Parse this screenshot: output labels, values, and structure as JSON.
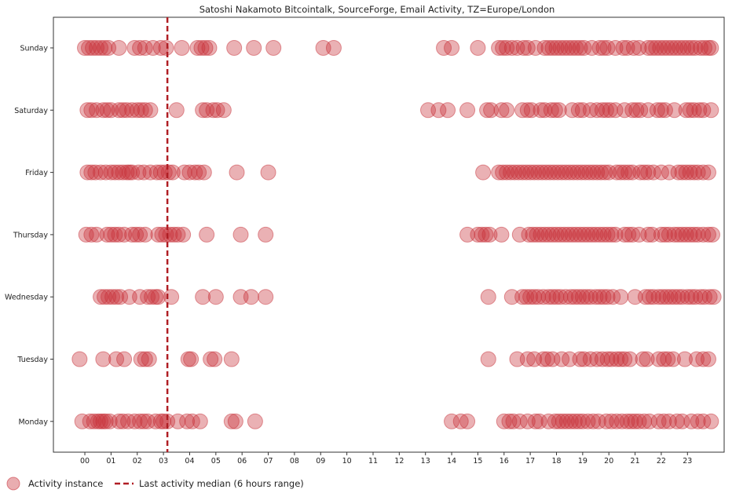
{
  "chart_data": {
    "type": "scatter",
    "title": "Satoshi Nakamoto Bitcointalk, SourceForge, Email Activity, TZ=Europe/London",
    "xlabel": "",
    "ylabel": "",
    "x_ticks": [
      "00",
      "01",
      "02",
      "03",
      "04",
      "05",
      "06",
      "07",
      "08",
      "09",
      "10",
      "11",
      "12",
      "13",
      "14",
      "15",
      "16",
      "17",
      "18",
      "19",
      "20",
      "21",
      "22",
      "23"
    ],
    "xlim": [
      -1.2,
      24.4
    ],
    "categories": [
      "Sunday",
      "Saturday",
      "Friday",
      "Thursday",
      "Wednesday",
      "Tuesday",
      "Monday"
    ],
    "marker_color": "#c8323a",
    "line_color": "#b01e24",
    "legend_position": "bottom-left",
    "grid": false,
    "median_line": {
      "x": 3.15,
      "label": "Last activity median (6 hours range)"
    },
    "series": [
      {
        "name": "Activity instance",
        "points": [
          {
            "day": "Sunday",
            "hours": [
              0.0,
              0.15,
              0.3,
              0.45,
              0.6,
              0.75,
              0.9,
              1.3,
              1.9,
              2.1,
              2.3,
              2.6,
              2.9,
              3.1,
              3.7,
              4.3,
              4.45,
              4.6,
              4.75,
              5.7,
              6.45,
              7.2,
              9.1,
              9.5,
              13.7,
              14.0,
              15.0,
              15.8,
              15.95,
              16.1,
              16.3,
              16.5,
              16.75,
              16.9,
              17.2,
              17.55,
              17.7,
              17.85,
              18.0,
              18.15,
              18.3,
              18.45,
              18.6,
              18.75,
              18.9,
              19.05,
              19.35,
              19.65,
              19.8,
              19.95,
              20.25,
              20.55,
              20.7,
              20.95,
              21.15,
              21.5,
              21.65,
              21.8,
              21.95,
              22.1,
              22.25,
              22.4,
              22.55,
              22.7,
              22.85,
              23.0,
              23.15,
              23.3,
              23.5,
              23.65,
              23.8,
              23.9
            ]
          },
          {
            "day": "Saturday",
            "hours": [
              0.1,
              0.25,
              0.45,
              0.7,
              0.85,
              1.0,
              1.3,
              1.45,
              1.6,
              1.8,
              2.0,
              2.15,
              2.3,
              2.5,
              3.5,
              4.5,
              4.65,
              4.9,
              5.05,
              5.3,
              13.1,
              13.5,
              13.85,
              14.6,
              15.35,
              15.5,
              15.9,
              16.1,
              16.7,
              16.9,
              17.05,
              17.4,
              17.55,
              17.8,
              17.95,
              18.1,
              18.6,
              18.85,
              19.0,
              19.3,
              19.55,
              19.75,
              19.9,
              20.05,
              20.25,
              20.6,
              20.9,
              21.05,
              21.2,
              21.5,
              21.85,
              22.0,
              22.15,
              22.5,
              22.95,
              23.1,
              23.25,
              23.45,
              23.6,
              23.9
            ]
          },
          {
            "day": "Friday",
            "hours": [
              0.1,
              0.25,
              0.4,
              0.6,
              0.8,
              1.0,
              1.15,
              1.3,
              1.45,
              1.6,
              1.7,
              1.8,
              2.05,
              2.25,
              2.5,
              2.75,
              2.9,
              3.05,
              3.2,
              3.35,
              3.8,
              4.0,
              4.2,
              4.35,
              4.55,
              5.8,
              7.0,
              15.2,
              15.8,
              15.95,
              16.1,
              16.25,
              16.4,
              16.55,
              16.7,
              16.85,
              17.0,
              17.15,
              17.3,
              17.45,
              17.6,
              17.75,
              17.9,
              18.05,
              18.2,
              18.35,
              18.5,
              18.65,
              18.8,
              18.95,
              19.1,
              19.25,
              19.4,
              19.55,
              19.7,
              19.85,
              20.0,
              20.3,
              20.45,
              20.6,
              20.75,
              20.9,
              21.2,
              21.35,
              21.5,
              21.7,
              22.0,
              22.3,
              22.65,
              22.8,
              22.95,
              23.1,
              23.25,
              23.4,
              23.6,
              23.8
            ]
          },
          {
            "day": "Thursday",
            "hours": [
              0.05,
              0.25,
              0.45,
              0.85,
              1.0,
              1.15,
              1.3,
              1.5,
              1.8,
              1.95,
              2.1,
              2.3,
              2.8,
              2.95,
              3.1,
              3.25,
              3.4,
              3.55,
              3.75,
              4.65,
              5.95,
              6.9,
              14.6,
              15.0,
              15.15,
              15.3,
              15.45,
              15.9,
              16.6,
              16.95,
              17.1,
              17.25,
              17.4,
              17.55,
              17.7,
              17.85,
              18.0,
              18.15,
              18.3,
              18.45,
              18.6,
              18.75,
              18.9,
              19.05,
              19.2,
              19.35,
              19.5,
              19.65,
              19.8,
              19.95,
              20.1,
              20.25,
              20.6,
              20.75,
              20.9,
              21.15,
              21.5,
              21.65,
              22.0,
              22.15,
              22.3,
              22.5,
              22.65,
              22.8,
              22.95,
              23.1,
              23.25,
              23.4,
              23.6,
              23.8,
              23.95
            ]
          },
          {
            "day": "Wednesday",
            "hours": [
              0.6,
              0.75,
              0.9,
              1.05,
              1.2,
              1.35,
              1.7,
              2.1,
              2.4,
              2.55,
              2.7,
              2.8,
              3.3,
              4.5,
              5.0,
              5.95,
              6.35,
              6.9,
              15.4,
              16.3,
              16.7,
              16.85,
              17.0,
              17.15,
              17.3,
              17.5,
              17.7,
              17.85,
              18.0,
              18.15,
              18.35,
              18.55,
              18.7,
              18.85,
              19.0,
              19.15,
              19.3,
              19.5,
              19.65,
              19.8,
              19.95,
              20.15,
              20.45,
              21.0,
              21.4,
              21.55,
              21.7,
              21.9,
              22.05,
              22.2,
              22.35,
              22.5,
              22.65,
              22.8,
              23.0,
              23.15,
              23.3,
              23.5,
              23.65,
              23.85,
              24.0
            ]
          },
          {
            "day": "Tuesday",
            "hours": [
              -0.2,
              0.7,
              1.2,
              1.5,
              2.15,
              2.3,
              2.45,
              3.95,
              4.05,
              4.8,
              4.95,
              5.6,
              15.4,
              16.5,
              16.9,
              17.15,
              17.5,
              17.65,
              17.85,
              18.2,
              18.5,
              18.9,
              19.05,
              19.3,
              19.55,
              19.75,
              19.95,
              20.1,
              20.3,
              20.45,
              20.6,
              20.8,
              21.3,
              21.45,
              21.9,
              22.1,
              22.25,
              22.45,
              22.9,
              23.35,
              23.6,
              23.8
            ]
          },
          {
            "day": "Monday",
            "hours": [
              -0.1,
              0.2,
              0.35,
              0.5,
              0.6,
              0.7,
              0.8,
              0.95,
              1.3,
              1.45,
              1.65,
              1.9,
              2.1,
              2.25,
              2.4,
              2.7,
              2.9,
              3.0,
              3.15,
              3.55,
              3.9,
              4.1,
              4.4,
              5.6,
              5.75,
              6.5,
              14.0,
              14.35,
              14.6,
              16.0,
              16.2,
              16.35,
              16.6,
              16.9,
              17.2,
              17.35,
              17.7,
              17.95,
              18.1,
              18.25,
              18.4,
              18.55,
              18.7,
              18.85,
              19.0,
              19.2,
              19.4,
              19.6,
              19.9,
              20.1,
              20.3,
              20.5,
              20.7,
              20.85,
              21.0,
              21.15,
              21.35,
              21.55,
              21.9,
              22.1,
              22.3,
              22.6,
              22.8,
              23.15,
              23.4,
              23.6,
              23.9
            ]
          }
        ]
      }
    ]
  }
}
